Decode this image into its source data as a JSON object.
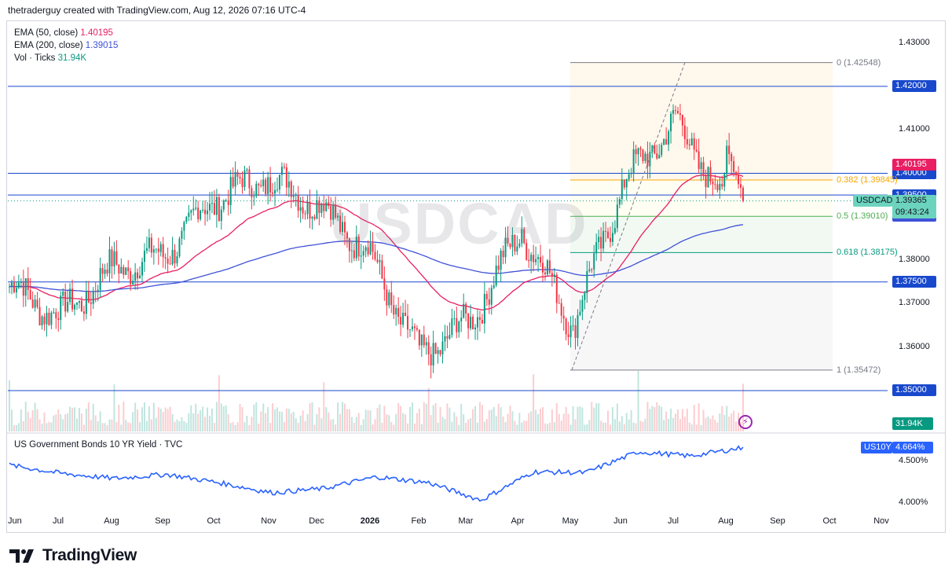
{
  "header": {
    "attribution": "thetraderguy created with TradingView.com, Aug 12, 2026 07:16 UTC-4"
  },
  "symbol": {
    "watermark": "USDCAD",
    "tag": "USDCAD",
    "price": "1.39365",
    "countdown": "09:43:24"
  },
  "legend": {
    "ema50_label": "EMA (50, close)",
    "ema50_value": "1.40195",
    "ema200_label": "EMA (200, close)",
    "ema200_value": "1.39015",
    "vol_label": "Vol · Ticks",
    "vol_value": "31.94K"
  },
  "lower_pane": {
    "title": "US Government Bonds 10 YR Yield · TVC",
    "tag": "US10Y",
    "value": "4.664%"
  },
  "footer": {
    "brand": "TradingView"
  },
  "colors": {
    "up": "#089981",
    "down": "#f23645",
    "ema50": "#e91e63",
    "ema200": "#3f51d8",
    "hline": "#1848cc",
    "fib382": "#f7a600",
    "fib5": "#4caf50",
    "fib618": "#089981",
    "yield": "#2962ff"
  },
  "price_axis_labels": [
    "1.43000",
    "1.41000",
    "1.38000",
    "1.37000",
    "1.36000"
  ],
  "horizontal_levels": [
    {
      "label": "1.42000"
    },
    {
      "label": "1.40000"
    },
    {
      "label": "1.39500"
    },
    {
      "label": "1.37500"
    },
    {
      "label": "1.35000"
    }
  ],
  "ema_tags": {
    "ema50": "1.40195",
    "ema200": "1.39015"
  },
  "volume_tag": "31.94K",
  "yield_axis_labels": [
    "4.500%",
    "4.000%"
  ],
  "fib_levels": [
    {
      "label": "0 (1.42548)"
    },
    {
      "label": "0.382 (1.39845)"
    },
    {
      "label": "0.5 (1.39010)"
    },
    {
      "label": "0.618 (1.38175)"
    },
    {
      "label": "1 (1.35472)"
    }
  ],
  "months": [
    "Jun",
    "Jul",
    "Aug",
    "Sep",
    "Oct",
    "Nov",
    "Dec",
    "2026",
    "Feb",
    "Mar",
    "Apr",
    "May",
    "Jun",
    "Jul",
    "Aug",
    "Sep",
    "Oct",
    "Nov"
  ],
  "chart_data": {
    "type": "candlestick",
    "symbol": "USDCAD",
    "price_range": [
      1.348,
      1.433
    ],
    "x_labels": [
      "Jun",
      "Jul",
      "Aug",
      "Sep",
      "Oct",
      "Nov",
      "Dec",
      "2026",
      "Feb",
      "Mar",
      "Apr",
      "May",
      "Jun",
      "Jul",
      "Aug",
      "Sep",
      "Oct",
      "Nov"
    ],
    "close_path_monthly": [
      {
        "month": "Jun",
        "close": 1.374
      },
      {
        "month": "Jul",
        "close": 1.367
      },
      {
        "month": "Aug",
        "close": 1.378
      },
      {
        "month": "Sep",
        "close": 1.381
      },
      {
        "month": "Oct",
        "close": 1.394
      },
      {
        "month": "Nov",
        "close": 1.399
      },
      {
        "month": "Dec",
        "close": 1.393
      },
      {
        "month": "2026",
        "close": 1.382
      },
      {
        "month": "Feb",
        "close": 1.358
      },
      {
        "month": "Mar",
        "close": 1.366
      },
      {
        "month": "Apr",
        "close": 1.387
      },
      {
        "month": "May",
        "close": 1.365
      },
      {
        "month": "Jun",
        "close": 1.398
      },
      {
        "month": "Jul",
        "close": 1.412
      },
      {
        "month": "Aug",
        "close": 1.3937
      }
    ],
    "last_close": 1.39365,
    "ema50_last": 1.40195,
    "ema200_last": 1.39015,
    "horizontal_levels": [
      1.42,
      1.4,
      1.395,
      1.375,
      1.35
    ],
    "fibonacci": {
      "high": 1.42548,
      "low": 1.35472,
      "levels": [
        {
          "ratio": 0,
          "price": 1.42548
        },
        {
          "ratio": 0.382,
          "price": 1.39845
        },
        {
          "ratio": 0.5,
          "price": 1.3901
        },
        {
          "ratio": 0.618,
          "price": 1.38175
        },
        {
          "ratio": 1,
          "price": 1.35472
        }
      ]
    },
    "volume_last": "31.94K",
    "yield_series": {
      "name": "US10Y",
      "last": 4.664,
      "range": [
        3.95,
        4.75
      ],
      "monthly": [
        4.45,
        4.35,
        4.29,
        4.34,
        4.24,
        4.12,
        4.17,
        4.31,
        4.24,
        4.03,
        4.37,
        4.36,
        4.61,
        4.56,
        4.66
      ]
    }
  }
}
